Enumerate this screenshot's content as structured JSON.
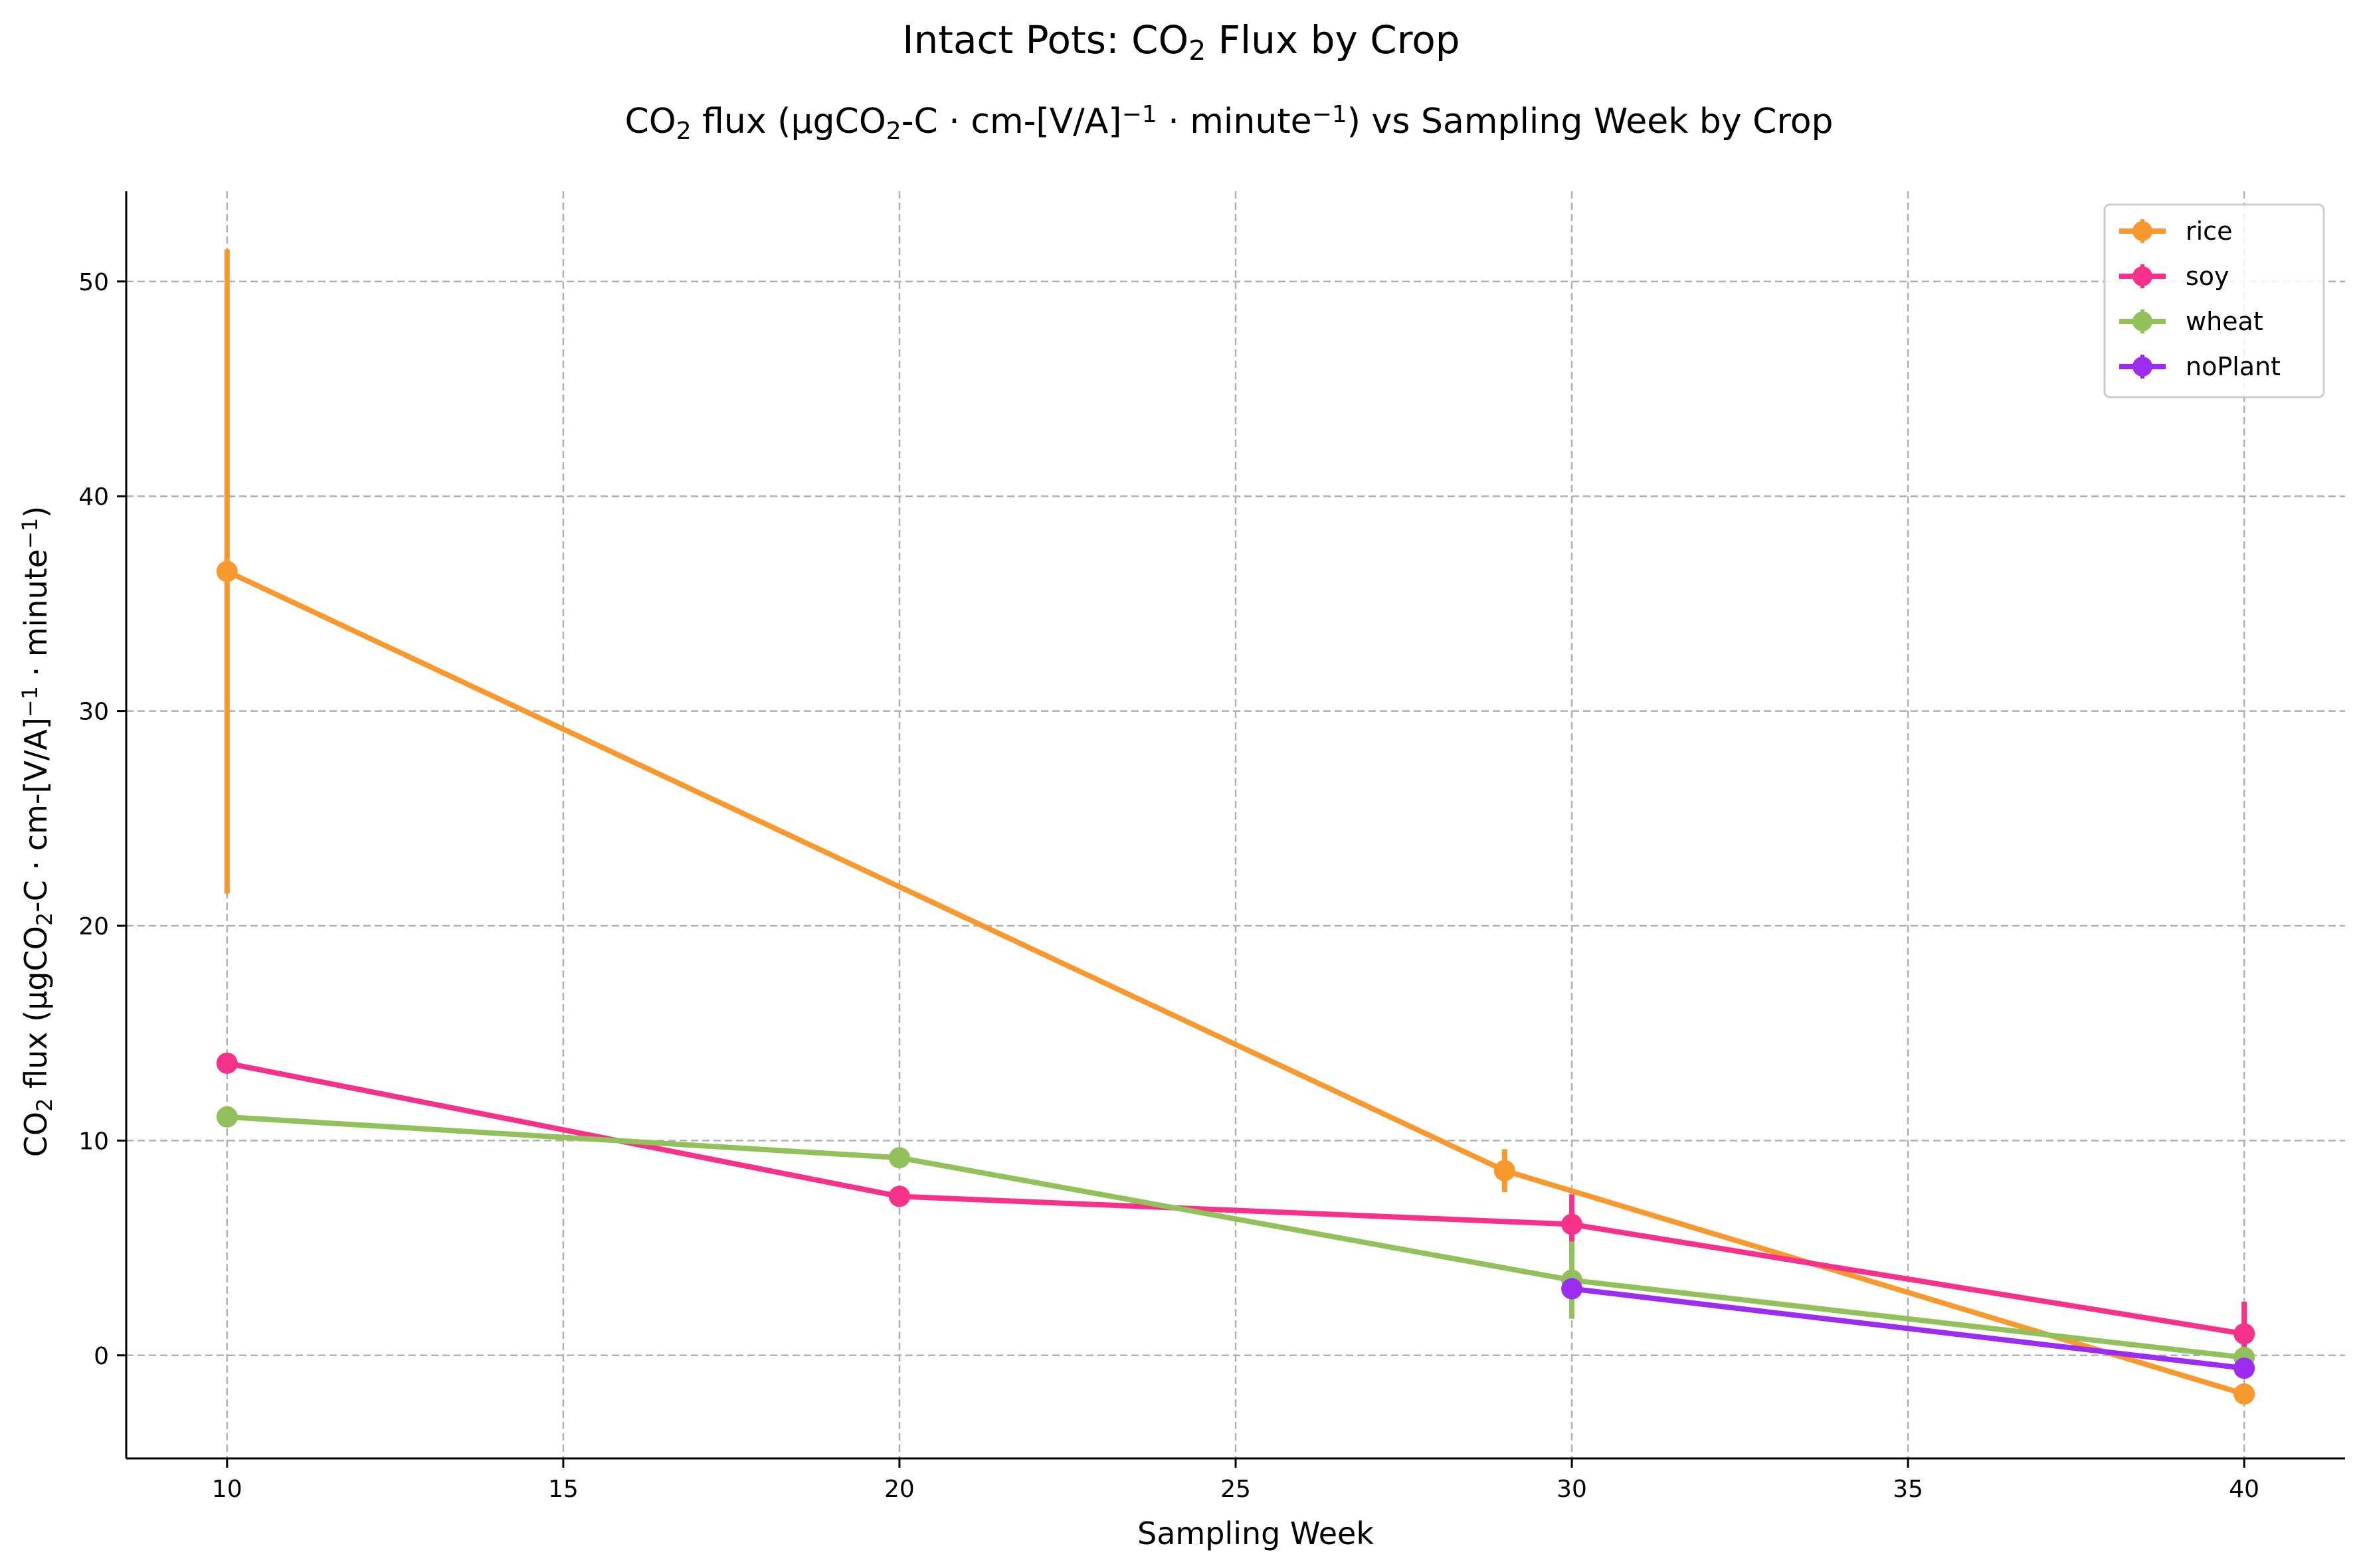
{
  "figure": {
    "suptitle": "Intact Pots: CO₂ Flux by Crop"
  },
  "chart_data": {
    "type": "line",
    "title_parts": [
      "CO",
      "2",
      " flux (µgCO",
      "2",
      "-C · cm-[V/A]",
      "−1",
      " · minute",
      "−1",
      ") vs Sampling Week by Crop"
    ],
    "xlabel": "Sampling Week",
    "ylabel_parts": [
      "CO",
      "2",
      " flux (µgCO",
      "2",
      "-C · cm-[V/A]",
      "−1",
      " · minute",
      "−1",
      ")"
    ],
    "xlim": [
      8.5,
      41.5
    ],
    "ylim": [
      -4.8,
      54.2
    ],
    "xticks": [
      10,
      15,
      20,
      25,
      30,
      35,
      40
    ],
    "yticks": [
      0,
      10,
      20,
      30,
      40,
      50
    ],
    "grid": true,
    "grid_style": "dashed",
    "legend_position": "top-right",
    "series": [
      {
        "name": "rice",
        "color": "#f7992e",
        "x": [
          10,
          29,
          40
        ],
        "y": [
          36.5,
          8.6,
          -1.8
        ],
        "yerr": [
          15.0,
          1.0,
          0.4
        ]
      },
      {
        "name": "soy",
        "color": "#f5318b",
        "x": [
          10,
          20,
          30,
          40
        ],
        "y": [
          13.6,
          7.4,
          6.1,
          1.0
        ],
        "yerr": [
          0.3,
          0.3,
          1.4,
          1.5
        ]
      },
      {
        "name": "wheat",
        "color": "#92c15c",
        "x": [
          10,
          20,
          30,
          40
        ],
        "y": [
          11.1,
          9.2,
          3.5,
          -0.1
        ],
        "yerr": [
          0.3,
          0.3,
          1.8,
          0.3
        ]
      },
      {
        "name": "noPlant",
        "color": "#9b2cf0",
        "x": [
          30,
          40
        ],
        "y": [
          3.1,
          -0.6
        ],
        "yerr": [
          0.3,
          0.4
        ]
      }
    ]
  }
}
